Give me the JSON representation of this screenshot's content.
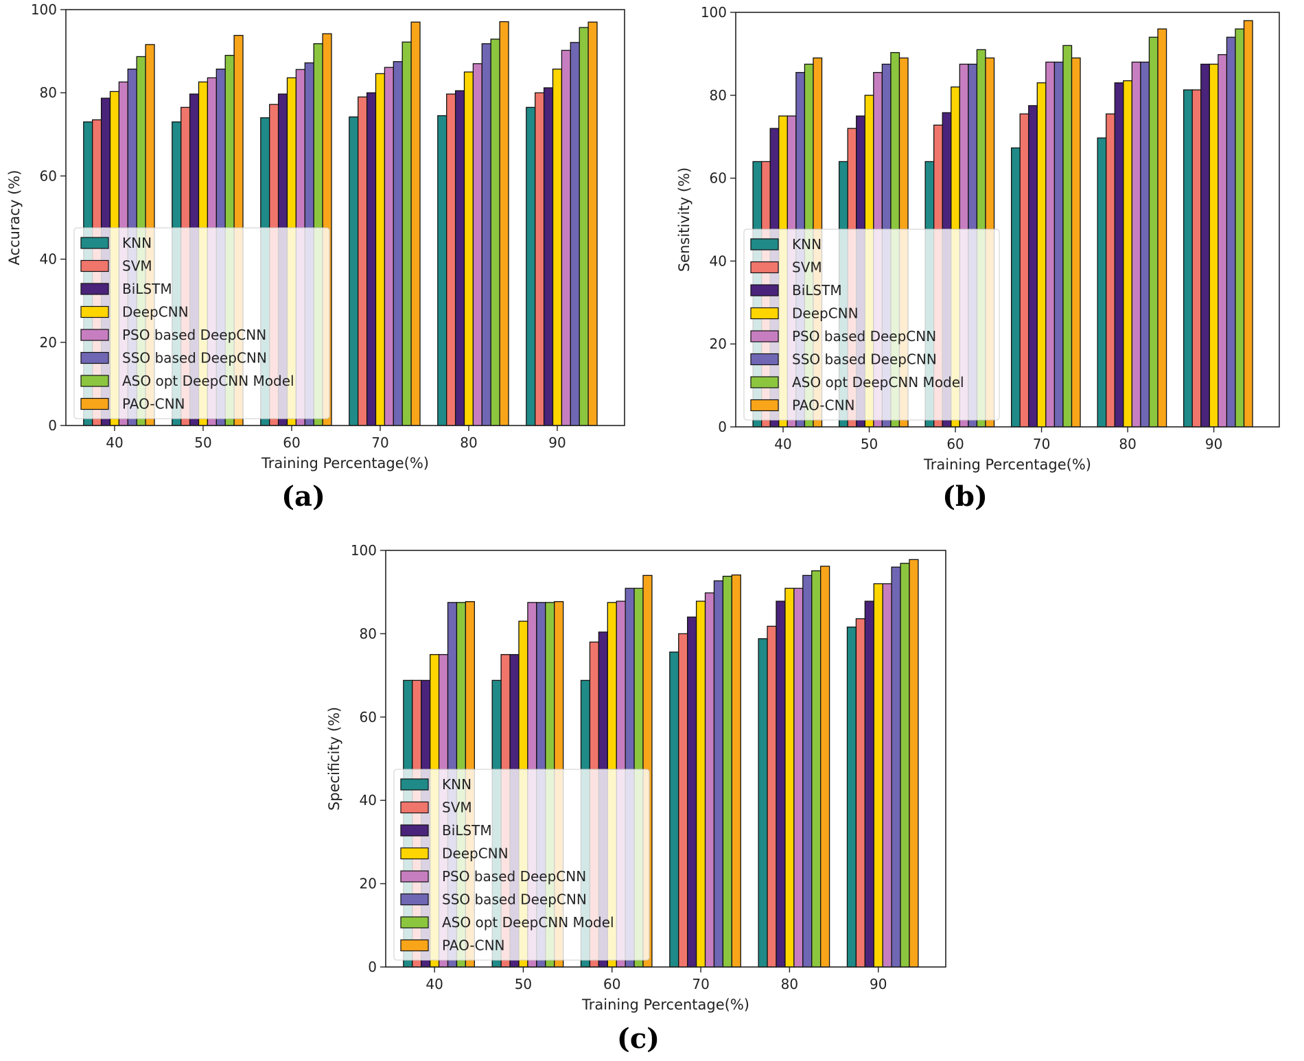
{
  "series_colors": [
    "#1f8a87",
    "#f0766c",
    "#4a237a",
    "#ffd500",
    "#c77ec0",
    "#6f67b3",
    "#8cc63f",
    "#f9a51a"
  ],
  "chart_data": [
    {
      "id": "a",
      "type": "bar",
      "caption": "(a)",
      "title": "",
      "xlabel": "Training Percentage(%)",
      "ylabel": "Accuracy (%)",
      "ylim": [
        0,
        100
      ],
      "yticks": [
        0,
        20,
        40,
        60,
        80,
        100
      ],
      "categories": [
        "40",
        "50",
        "60",
        "70",
        "80",
        "90"
      ],
      "legend_position": "lower-left",
      "series": [
        {
          "name": "KNN",
          "values": [
            73,
            73,
            74,
            74.2,
            74.5,
            76.5
          ]
        },
        {
          "name": "SVM",
          "values": [
            73.5,
            76.5,
            77.2,
            79,
            79.7,
            80
          ]
        },
        {
          "name": "BiLSTM",
          "values": [
            78.7,
            79.7,
            79.7,
            80,
            80.5,
            81.2
          ]
        },
        {
          "name": "DeepCNN",
          "values": [
            80.3,
            82.6,
            83.6,
            84.6,
            85,
            85.7
          ]
        },
        {
          "name": "PSO based DeepCNN",
          "values": [
            82.6,
            83.6,
            85.6,
            86.1,
            87,
            90.2
          ]
        },
        {
          "name": "SSO based DeepCNN",
          "values": [
            85.7,
            85.7,
            87.2,
            87.5,
            91.8,
            92.1
          ]
        },
        {
          "name": "ASO opt DeepCNN Model",
          "values": [
            88.7,
            89,
            91.8,
            92.2,
            92.9,
            95.7
          ]
        },
        {
          "name": "PAO-CNN",
          "values": [
            91.6,
            93.8,
            94.2,
            97,
            97.1,
            97
          ]
        }
      ]
    },
    {
      "id": "b",
      "type": "bar",
      "caption": "(b)",
      "title": "",
      "xlabel": "Training Percentage(%)",
      "ylabel": "Sensitivity (%)",
      "ylim": [
        0,
        100
      ],
      "yticks": [
        0,
        20,
        40,
        60,
        80,
        100
      ],
      "categories": [
        "40",
        "50",
        "60",
        "70",
        "80",
        "90"
      ],
      "legend_position": "lower-left",
      "series": [
        {
          "name": "KNN",
          "values": [
            64,
            64,
            64,
            67.3,
            69.7,
            81.3
          ]
        },
        {
          "name": "SVM",
          "values": [
            64,
            72,
            72.8,
            75.5,
            75.5,
            81.3
          ]
        },
        {
          "name": "BiLSTM",
          "values": [
            72,
            75,
            75.8,
            77.5,
            83,
            87.5
          ]
        },
        {
          "name": "DeepCNN",
          "values": [
            75,
            80,
            82,
            83,
            83.5,
            87.5
          ]
        },
        {
          "name": "PSO based DeepCNN",
          "values": [
            75,
            85.5,
            87.5,
            88,
            88,
            89.8
          ]
        },
        {
          "name": "SSO based DeepCNN",
          "values": [
            85.5,
            87.5,
            87.5,
            88,
            88,
            94
          ]
        },
        {
          "name": "ASO opt DeepCNN Model",
          "values": [
            87.5,
            90.3,
            91,
            92,
            94,
            96
          ]
        },
        {
          "name": "PAO-CNN",
          "values": [
            89,
            89,
            89,
            89,
            96,
            98
          ]
        }
      ]
    },
    {
      "id": "c",
      "type": "bar",
      "caption": "(c)",
      "title": "",
      "xlabel": "Training Percentage(%)",
      "ylabel": "Specificity (%)",
      "ylim": [
        0,
        100
      ],
      "yticks": [
        0,
        20,
        40,
        60,
        80,
        100
      ],
      "categories": [
        "40",
        "50",
        "60",
        "70",
        "80",
        "90"
      ],
      "legend_position": "lower-left",
      "series": [
        {
          "name": "KNN",
          "values": [
            68.8,
            68.8,
            68.8,
            75.6,
            78.8,
            81.6
          ]
        },
        {
          "name": "SVM",
          "values": [
            68.8,
            75,
            78,
            80,
            81.8,
            83.6
          ]
        },
        {
          "name": "BiLSTM",
          "values": [
            68.8,
            75,
            80.4,
            84,
            87.8,
            87.8
          ]
        },
        {
          "name": "DeepCNN",
          "values": [
            75,
            83,
            87.5,
            87.8,
            90.9,
            92
          ]
        },
        {
          "name": "PSO based DeepCNN",
          "values": [
            75,
            87.5,
            87.8,
            89.8,
            90.9,
            92
          ]
        },
        {
          "name": "SSO based DeepCNN",
          "values": [
            87.5,
            87.5,
            90.9,
            92.7,
            94,
            96
          ]
        },
        {
          "name": "ASO opt DeepCNN Model",
          "values": [
            87.5,
            87.5,
            90.9,
            93.8,
            95.1,
            96.9
          ]
        },
        {
          "name": "PAO-CNN",
          "values": [
            87.7,
            87.7,
            94,
            94.1,
            96.2,
            97.8
          ]
        }
      ]
    }
  ]
}
